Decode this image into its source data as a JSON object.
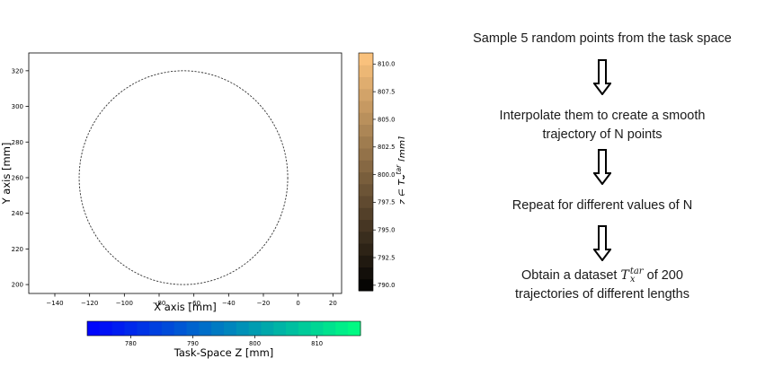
{
  "chart_data": {
    "type": "line",
    "plot": {
      "xlabel": "X axis [mm]",
      "ylabel": "Y axis [mm]",
      "xlim": [
        -155,
        25
      ],
      "ylim": [
        195,
        330
      ],
      "x_ticks": [
        -140,
        -120,
        -100,
        -80,
        -60,
        -40,
        -20,
        0,
        20
      ],
      "x_tick_labels": [
        "−140",
        "−120",
        "−100",
        "−80",
        "−60",
        "−40",
        "−20",
        "0",
        "20"
      ],
      "y_ticks": [
        200,
        220,
        240,
        260,
        280,
        300,
        320
      ],
      "y_tick_labels": [
        "200",
        "220",
        "240",
        "260",
        "280",
        "300",
        "320"
      ],
      "grid": false,
      "series": [
        {
          "shape": "circle",
          "style": "dashed",
          "color": "#333333",
          "center": [
            -66,
            260
          ],
          "radius": 60
        }
      ]
    },
    "colorbar_right": {
      "label": "z ∈ T",
      "label_bold": "x",
      "label_sup": "tar",
      "label_unit": "[mm]",
      "range": [
        789.5,
        811
      ],
      "ticks": [
        790.0,
        792.5,
        795.0,
        797.5,
        800.0,
        802.5,
        805.0,
        807.5,
        810.0
      ],
      "tick_labels": [
        "790.0",
        "792.5",
        "795.0",
        "797.5",
        "800.0",
        "802.5",
        "805.0",
        "807.5",
        "810.0"
      ],
      "colormap": "copper",
      "color_low": "#000000",
      "color_high": "#ffc67f"
    },
    "colorbar_bottom": {
      "label": "Task-Space Z [mm]",
      "range": [
        773,
        817
      ],
      "ticks": [
        780,
        790,
        800,
        810
      ],
      "tick_labels": [
        "780",
        "790",
        "800",
        "810"
      ],
      "colormap": "winter",
      "color_low": "#0000ff",
      "color_high": "#00ff80"
    }
  },
  "flow": {
    "steps": [
      {
        "lines": [
          "Sample 5 random points from the task space"
        ]
      },
      {
        "lines": [
          "Interpolate them to create a smooth",
          "trajectory of N points"
        ]
      },
      {
        "lines": [
          "Repeat for different values of N"
        ]
      },
      {
        "prefix": "Obtain a dataset",
        "math_base": "T",
        "math_sup": "tar",
        "math_sub": "x",
        "suffix": "of 200",
        "line2": "trajectories of different lengths"
      }
    ]
  }
}
